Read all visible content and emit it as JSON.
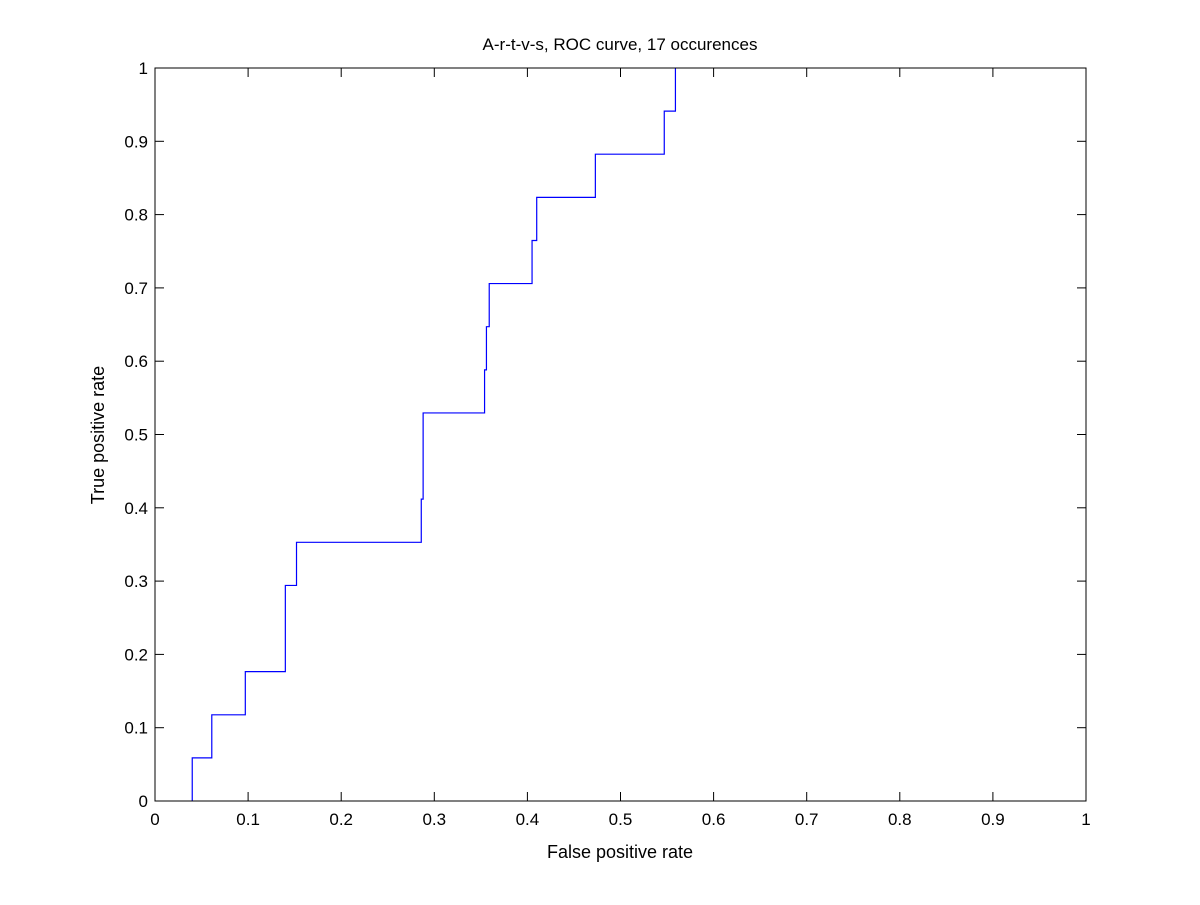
{
  "chart_data": {
    "type": "line",
    "title": "A-r-t-v-s, ROC curve, 17 occurences",
    "xlabel": "False positive rate",
    "ylabel": "True positive rate",
    "xlim": [
      0,
      1
    ],
    "ylim": [
      0,
      1
    ],
    "xticks": [
      0,
      0.1,
      0.2,
      0.3,
      0.4,
      0.5,
      0.6,
      0.7,
      0.8,
      0.9,
      1
    ],
    "yticks": [
      0,
      0.1,
      0.2,
      0.3,
      0.4,
      0.5,
      0.6,
      0.7,
      0.8,
      0.9,
      1
    ],
    "xtick_labels": [
      "0",
      "0.1",
      "0.2",
      "0.3",
      "0.4",
      "0.5",
      "0.6",
      "0.7",
      "0.8",
      "0.9",
      "1"
    ],
    "ytick_labels": [
      "0",
      "0.1",
      "0.2",
      "0.3",
      "0.4",
      "0.5",
      "0.6",
      "0.7",
      "0.8",
      "0.9",
      "1"
    ],
    "grid": false,
    "line_color": "#0000ff",
    "series": [
      {
        "step": "vertical-then-horizontal",
        "points": [
          {
            "x": 0.04,
            "y": 0
          },
          {
            "x": 0.04,
            "y": 0.0588
          },
          {
            "x": 0.061,
            "y": 0.0588
          },
          {
            "x": 0.061,
            "y": 0.1176
          },
          {
            "x": 0.097,
            "y": 0.1176
          },
          {
            "x": 0.097,
            "y": 0.1765
          },
          {
            "x": 0.14,
            "y": 0.1765
          },
          {
            "x": 0.14,
            "y": 0.2941
          },
          {
            "x": 0.152,
            "y": 0.2941
          },
          {
            "x": 0.152,
            "y": 0.3529
          },
          {
            "x": 0.286,
            "y": 0.3529
          },
          {
            "x": 0.286,
            "y": 0.4118
          },
          {
            "x": 0.288,
            "y": 0.4118
          },
          {
            "x": 0.288,
            "y": 0.5294
          },
          {
            "x": 0.354,
            "y": 0.5294
          },
          {
            "x": 0.354,
            "y": 0.5882
          },
          {
            "x": 0.356,
            "y": 0.5882
          },
          {
            "x": 0.356,
            "y": 0.6471
          },
          {
            "x": 0.359,
            "y": 0.6471
          },
          {
            "x": 0.359,
            "y": 0.7059
          },
          {
            "x": 0.405,
            "y": 0.7059
          },
          {
            "x": 0.405,
            "y": 0.7647
          },
          {
            "x": 0.41,
            "y": 0.7647
          },
          {
            "x": 0.41,
            "y": 0.8235
          },
          {
            "x": 0.473,
            "y": 0.8235
          },
          {
            "x": 0.473,
            "y": 0.8824
          },
          {
            "x": 0.547,
            "y": 0.8824
          },
          {
            "x": 0.547,
            "y": 0.9412
          },
          {
            "x": 0.559,
            "y": 0.9412
          },
          {
            "x": 0.559,
            "y": 1.0
          }
        ]
      }
    ]
  }
}
